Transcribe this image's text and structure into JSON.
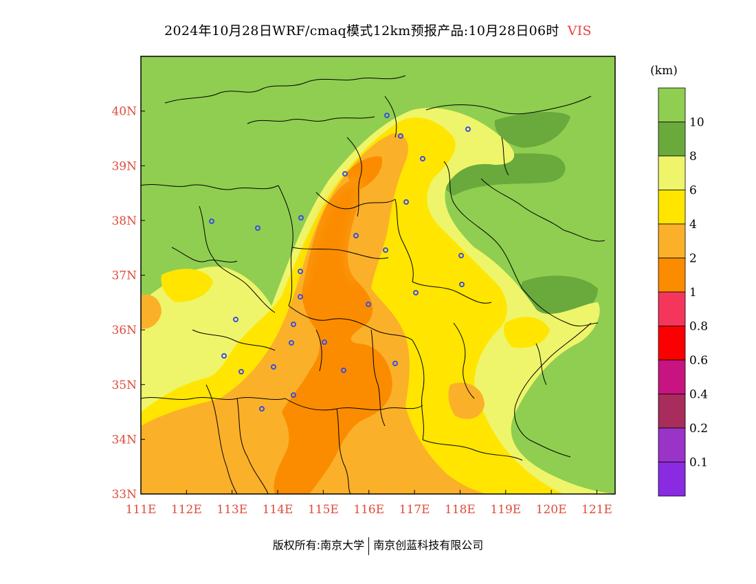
{
  "title": {
    "text": "2024年10月28日WRF/cmaq模式12km预报产品:10月28日06时",
    "variable": "VIS"
  },
  "map": {
    "lon_ticks": [
      "111E",
      "112E",
      "113E",
      "114E",
      "115E",
      "116E",
      "117E",
      "118E",
      "119E",
      "120E",
      "121E"
    ],
    "lat_ticks": [
      "33N",
      "34N",
      "35N",
      "36N",
      "37N",
      "38N",
      "39N",
      "40N"
    ],
    "lon_range": [
      111,
      121.4
    ],
    "lat_range": [
      33,
      41
    ]
  },
  "legend": {
    "unit": "(km)",
    "boundaries": [
      "10",
      "8",
      "6",
      "4",
      "2",
      "1",
      "0.8",
      "0.6",
      "0.4",
      "0.2",
      "0.1"
    ],
    "colors": [
      "#8fce50",
      "#6aaa3c",
      "#eef56a",
      "#ffe500",
      "#fbb02a",
      "#fb8c00",
      "#f5365c",
      "#fa0000",
      "#c81480",
      "#a82d5c",
      "#9a34c8",
      "#8a2be2"
    ]
  },
  "footer": {
    "left": "版权所有:南京大学",
    "right": "南京创蓝科技有限公司"
  }
}
